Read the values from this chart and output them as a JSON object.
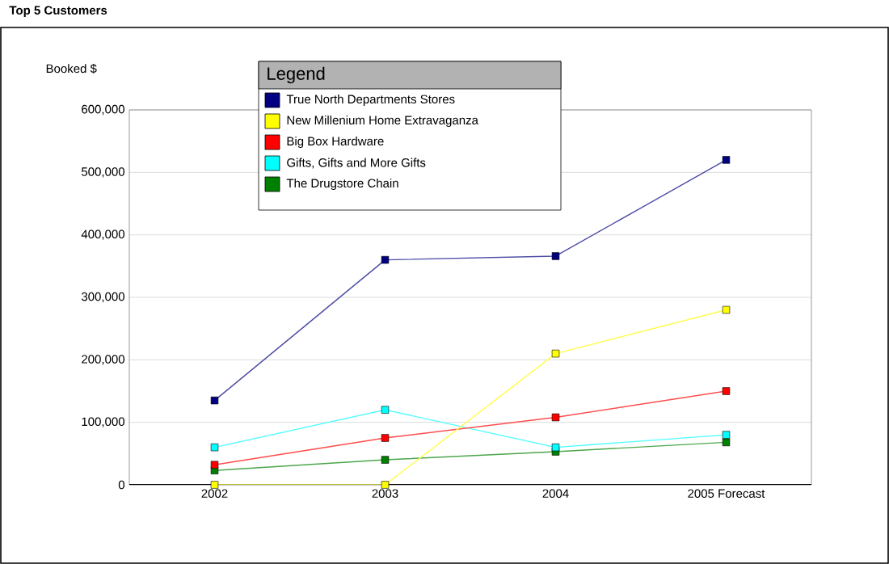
{
  "chart_data": {
    "type": "line",
    "title": "Top 5 Customers",
    "ylabel": "Booked $",
    "legend_title": "Legend",
    "legend": "top",
    "grid": "y",
    "marker": "square",
    "categories": [
      "2002",
      "2003",
      "2004",
      "2005 Forecast"
    ],
    "ylim": [
      0,
      600000
    ],
    "yticks": [
      {
        "value": 0,
        "label": "0"
      },
      {
        "value": 100000,
        "label": "100,000"
      },
      {
        "value": 200000,
        "label": "200,000"
      },
      {
        "value": 300000,
        "label": "300,000"
      },
      {
        "value": 400000,
        "label": "400,000"
      },
      {
        "value": 500000,
        "label": "500,000"
      },
      {
        "value": 600000,
        "label": "600,000"
      }
    ],
    "series": [
      {
        "name": "True North Departments Stores",
        "color": "#000080",
        "values": [
          135000,
          360000,
          366000,
          520000
        ]
      },
      {
        "name": "New Millenium Home Extravaganza",
        "color": "#ffff00",
        "values": [
          0,
          0,
          210000,
          280000
        ]
      },
      {
        "name": "Big Box Hardware",
        "color": "#ff0000",
        "values": [
          32000,
          75000,
          108000,
          150000
        ]
      },
      {
        "name": "Gifts, Gifts and More Gifts",
        "color": "#00ffff",
        "values": [
          60000,
          120000,
          60000,
          80000
        ]
      },
      {
        "name": "The Drugstore Chain",
        "color": "#008000",
        "values": [
          23000,
          40000,
          53000,
          68000
        ]
      }
    ]
  }
}
